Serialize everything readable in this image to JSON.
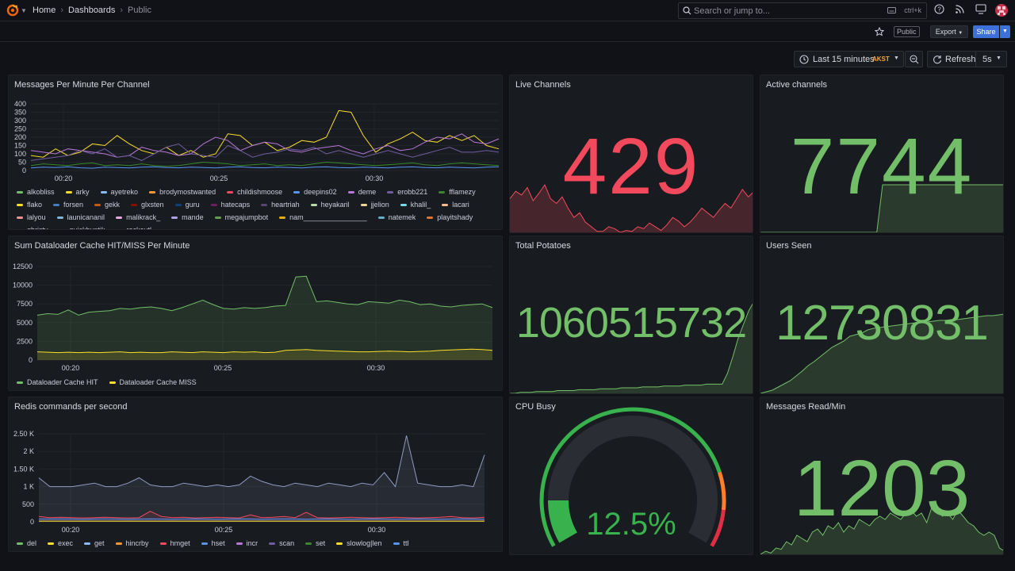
{
  "nav": {
    "breadcrumbs": [
      {
        "label": "Home"
      },
      {
        "label": "Dashboards"
      },
      {
        "label": "Public"
      }
    ],
    "search": {
      "placeholder": "Search or jump to...",
      "shortcut": "ctrl+k"
    }
  },
  "toolbar": {
    "public_badge": "Public",
    "export_label": "Export",
    "share_label": "Share",
    "time_range": "Last 15 minutes",
    "timezone": "AKST",
    "refresh_label": "Refresh",
    "refresh_interval": "5s"
  },
  "colors": {
    "bg": "#111217",
    "panel": "#181b1f",
    "green": "#73bf69",
    "red": "#f2495c",
    "yellow": "#fade2a",
    "blue": "#5794f2",
    "accent": "#3d71d9"
  },
  "panels": {
    "messages": {
      "title": "Messages Per Minute Per Channel",
      "legend": [
        {
          "name": "alkobliss",
          "color": "#73bf69"
        },
        {
          "name": "arky",
          "color": "#fade2a"
        },
        {
          "name": "ayetreko",
          "color": "#8ab8ff"
        },
        {
          "name": "brodymostwanted",
          "color": "#ff9830"
        },
        {
          "name": "childishmoose",
          "color": "#f2495c"
        },
        {
          "name": "deepins02",
          "color": "#5794f2"
        },
        {
          "name": "deme",
          "color": "#b877d9"
        },
        {
          "name": "erobb221",
          "color": "#705da0"
        },
        {
          "name": "fflamezy",
          "color": "#37872d"
        },
        {
          "name": "flako",
          "color": "#fade2a"
        },
        {
          "name": "forsen",
          "color": "#447ebc"
        },
        {
          "name": "gekk",
          "color": "#c15c17"
        },
        {
          "name": "glxsten",
          "color": "#890f02"
        },
        {
          "name": "guru",
          "color": "#0a437c"
        },
        {
          "name": "hatecaps",
          "color": "#6d1f62"
        },
        {
          "name": "heartriah",
          "color": "#584477"
        },
        {
          "name": "heyakaril",
          "color": "#b7dbab"
        },
        {
          "name": "jjelion",
          "color": "#f4d598"
        },
        {
          "name": "khalil_",
          "color": "#70dbed"
        },
        {
          "name": "lacari",
          "color": "#f9ba8f"
        },
        {
          "name": "lalyou",
          "color": "#f29191"
        },
        {
          "name": "launicananil",
          "color": "#82b5d8"
        },
        {
          "name": "malikrack_",
          "color": "#e5a8e2"
        },
        {
          "name": "mande",
          "color": "#aea2e0"
        },
        {
          "name": "megajumpbot",
          "color": "#629e51"
        },
        {
          "name": "nam________________",
          "color": "#e5ac0e"
        },
        {
          "name": "natemek",
          "color": "#64b0c8"
        },
        {
          "name": "playitshady",
          "color": "#e0752d"
        },
        {
          "name": "qhristv",
          "color": "#bf1b00"
        },
        {
          "name": "quickhuntik",
          "color": "#0a50a1"
        },
        {
          "name": "rockoutl",
          "color": "#962d82"
        }
      ]
    },
    "dataloader": {
      "title": "Sum Dataloader Cache HIT/MISS Per Minute",
      "legend": [
        {
          "name": "Dataloader Cache HIT",
          "color": "#73bf69"
        },
        {
          "name": "Dataloader Cache MISS",
          "color": "#fade2a"
        }
      ]
    },
    "redis": {
      "title": "Redis commands per second",
      "legend": [
        {
          "name": "del",
          "color": "#73bf69"
        },
        {
          "name": "exec",
          "color": "#fade2a"
        },
        {
          "name": "get",
          "color": "#8ab8ff"
        },
        {
          "name": "hincrby",
          "color": "#ff9830"
        },
        {
          "name": "hmget",
          "color": "#f2495c"
        },
        {
          "name": "hset",
          "color": "#5794f2"
        },
        {
          "name": "incr",
          "color": "#b877d9"
        },
        {
          "name": "scan",
          "color": "#705da0"
        },
        {
          "name": "set",
          "color": "#37872d"
        },
        {
          "name": "slowlog|len",
          "color": "#fade2a"
        },
        {
          "name": "ttl",
          "color": "#5794f2"
        }
      ]
    },
    "live_channels": {
      "title": "Live Channels",
      "value": "429",
      "color": "#f2495c"
    },
    "active_channels": {
      "title": "Active channels",
      "value": "7744",
      "color": "#73bf69"
    },
    "total_potatoes": {
      "title": "Total Potatoes",
      "value": "1060515732",
      "color": "#73bf69"
    },
    "users_seen": {
      "title": "Users Seen",
      "value": "12730831",
      "color": "#73bf69"
    },
    "cpu_busy": {
      "title": "CPU Busy",
      "value": "12.5%",
      "percent": 12.5,
      "color": "#37b24d"
    },
    "messages_read": {
      "title": "Messages Read/Min",
      "value": "1203",
      "color": "#73bf69"
    }
  },
  "chart_data": [
    {
      "type": "line",
      "title": "Messages Per Minute Per Channel",
      "ylim": [
        0,
        400
      ],
      "y_ticks": [
        "0",
        "50",
        "100",
        "150",
        "200",
        "250",
        "300",
        "350",
        "400"
      ],
      "x_ticks": [
        "00:20",
        "00:25",
        "00:30"
      ],
      "series": [
        {
          "name": "arky",
          "values": [
            90,
            80,
            130,
            90,
            110,
            160,
            150,
            210,
            160,
            120,
            100,
            140,
            90,
            120,
            80,
            100,
            220,
            210,
            150,
            170,
            120,
            140,
            180,
            170,
            200,
            360,
            350,
            210,
            110,
            160,
            190,
            230,
            180,
            170,
            210,
            180,
            210,
            150,
            130
          ]
        },
        {
          "name": "childishmoose",
          "values": [
            120,
            110,
            100,
            130,
            120,
            110,
            100,
            80,
            90,
            140,
            120,
            110,
            90,
            100,
            160,
            200,
            180,
            120,
            150,
            170,
            160,
            120,
            110,
            130,
            140,
            150,
            120,
            100,
            130,
            150,
            120,
            130,
            170,
            200,
            190,
            220,
            170,
            160,
            190
          ]
        },
        {
          "name": "deme",
          "values": [
            60,
            70,
            80,
            90,
            120,
            100,
            130,
            80,
            90,
            60,
            100,
            140,
            160,
            100,
            90,
            80,
            150,
            120,
            80,
            100,
            110,
            130,
            120,
            140,
            100,
            120,
            100,
            80,
            100,
            120,
            100,
            80,
            100,
            120,
            140,
            110,
            110,
            120,
            110
          ]
        },
        {
          "name": "fflamezy",
          "values": [
            30,
            40,
            35,
            30,
            40,
            45,
            30,
            35,
            30,
            40,
            30,
            25,
            30,
            40,
            50,
            45,
            40,
            30,
            35,
            40,
            30,
            35,
            30,
            40,
            50,
            45,
            40,
            35,
            30,
            35,
            40,
            45,
            35,
            30,
            40,
            45,
            40,
            35,
            30
          ]
        },
        {
          "name": "forsen",
          "values": [
            15,
            20,
            18,
            22,
            16,
            14,
            20,
            18,
            15,
            20,
            22,
            18,
            16,
            20,
            18,
            15,
            20,
            22,
            18,
            16,
            20,
            18,
            15,
            20,
            22,
            18,
            16,
            20,
            18,
            15,
            20,
            22,
            18,
            16,
            20,
            18,
            15,
            20,
            22
          ]
        }
      ]
    },
    {
      "type": "area",
      "title": "Sum Dataloader Cache HIT/MISS Per Minute",
      "ylim": [
        0,
        12500
      ],
      "y_ticks": [
        "0",
        "2500",
        "5000",
        "7500",
        "10000",
        "12500"
      ],
      "x_ticks": [
        "00:20",
        "00:25",
        "00:30"
      ],
      "series": [
        {
          "name": "Dataloader Cache HIT",
          "values": [
            6000,
            6200,
            6100,
            6700,
            6000,
            6400,
            6500,
            6600,
            6900,
            6800,
            7000,
            7100,
            6900,
            6600,
            7000,
            7500,
            8000,
            7400,
            6900,
            6800,
            7000,
            6900,
            7000,
            7200,
            7300,
            11100,
            11200,
            7800,
            7900,
            7700,
            7500,
            7400,
            7800,
            7700,
            7600,
            8000,
            7800,
            7400,
            7500,
            7200,
            7100,
            7300,
            7400,
            7500,
            7000
          ]
        },
        {
          "name": "Dataloader Cache MISS",
          "values": [
            1100,
            1050,
            1000,
            1050,
            1000,
            1050,
            1000,
            1050,
            1100,
            1000,
            1050,
            1000,
            1000,
            1100,
            1050,
            1000,
            1100,
            1050,
            1000,
            1100,
            1050,
            1100,
            1000,
            1050,
            1300,
            1350,
            1400,
            1300,
            1250,
            1200,
            1150,
            1100,
            1100,
            1150,
            1200,
            1150,
            1100,
            1150,
            1200,
            1300,
            1350,
            1400,
            1450,
            1400,
            1300
          ]
        }
      ]
    },
    {
      "type": "area",
      "title": "Redis commands per second",
      "ylim": [
        0,
        2500
      ],
      "y_ticks": [
        "0",
        "500",
        "1 K",
        "1.50 K",
        "2 K",
        "2.50 K"
      ],
      "x_ticks": [
        "00:20",
        "00:25",
        "00:30"
      ],
      "series": [
        {
          "name": "ttl",
          "values": [
            1250,
            1000,
            1000,
            1000,
            1050,
            1100,
            1000,
            1000,
            1100,
            1250,
            1050,
            1000,
            1000,
            1100,
            1050,
            1000,
            1050,
            1000,
            1050,
            1300,
            1150,
            1050,
            1000,
            1100,
            1050,
            1000,
            1100,
            1050,
            1000,
            1100,
            1050,
            1400,
            1000,
            2450,
            1100,
            1050,
            1000,
            1000,
            1050,
            1000,
            1900
          ]
        },
        {
          "name": "hmget",
          "values": [
            150,
            120,
            130,
            120,
            110,
            120,
            130,
            120,
            110,
            120,
            300,
            150,
            120,
            130,
            110,
            120,
            130,
            120,
            110,
            200,
            120,
            130,
            150,
            120,
            270,
            120,
            110,
            120,
            130,
            120,
            110,
            120,
            130,
            120,
            110,
            120,
            130,
            150,
            120,
            110,
            130
          ]
        },
        {
          "name": "hset",
          "values": [
            80,
            80,
            85,
            80,
            75,
            80,
            85,
            80,
            75,
            80,
            85,
            80,
            75,
            80,
            85,
            80,
            75,
            80,
            85,
            80,
            75,
            80,
            85,
            80,
            75,
            80,
            85,
            80,
            75,
            80,
            85,
            80,
            75,
            80,
            85,
            80,
            75,
            80,
            85,
            80,
            75
          ]
        },
        {
          "name": "exec",
          "values": [
            20,
            20,
            20,
            20,
            20,
            20,
            20,
            20,
            20,
            20,
            20,
            20,
            20,
            20,
            20,
            20,
            20,
            20,
            20,
            20,
            20,
            20,
            20,
            20,
            20,
            20,
            20,
            20,
            20,
            20,
            20,
            20,
            20,
            20,
            20,
            20,
            20,
            20,
            20,
            20,
            20
          ]
        }
      ]
    },
    {
      "type": "area",
      "title": "Live Channels sparkline",
      "values": [
        40,
        48,
        44,
        52,
        38,
        46,
        55,
        40,
        35,
        42,
        30,
        20,
        25,
        15,
        10,
        5,
        5,
        10,
        8,
        4,
        6,
        5,
        10,
        8,
        14,
        10,
        6,
        12,
        20,
        16,
        10,
        15,
        22,
        30,
        25,
        20,
        28,
        35,
        30,
        40,
        50,
        42,
        48
      ]
    },
    {
      "type": "area",
      "title": "Active channels sparkline",
      "values": [
        0,
        0,
        0,
        0,
        0,
        0,
        0,
        0,
        0,
        0,
        0,
        0,
        0,
        0,
        0,
        0,
        0,
        0,
        0,
        0,
        0,
        100,
        100,
        100,
        100,
        100,
        100,
        100,
        100,
        100,
        100,
        100,
        100,
        100,
        100,
        100,
        100,
        100,
        100,
        100,
        100,
        100,
        100
      ]
    },
    {
      "type": "area",
      "title": "Total Potatoes sparkline",
      "values": [
        0,
        0,
        1,
        1,
        1,
        2,
        2,
        2,
        2,
        3,
        3,
        3,
        3,
        4,
        4,
        4,
        4,
        5,
        5,
        5,
        5,
        6,
        6,
        6,
        6,
        7,
        7,
        7,
        7,
        8,
        8,
        8,
        8,
        9,
        9,
        9,
        9,
        10,
        10,
        10,
        10,
        22,
        40,
        60,
        75,
        90,
        100
      ]
    },
    {
      "type": "area",
      "title": "Users Seen sparkline",
      "values": [
        0,
        2,
        4,
        8,
        12,
        16,
        22,
        28,
        35,
        40,
        46,
        52,
        58,
        62,
        66,
        72,
        74,
        76,
        80,
        82,
        83,
        84,
        85,
        86,
        87,
        88,
        89,
        90,
        90,
        91,
        92,
        92,
        93,
        93,
        94,
        95,
        96,
        97,
        98,
        98,
        99,
        100
      ]
    },
    {
      "type": "area",
      "title": "Messages Read/Min sparkline",
      "values": [
        10,
        15,
        12,
        20,
        18,
        30,
        25,
        40,
        35,
        30,
        45,
        50,
        40,
        55,
        50,
        60,
        45,
        55,
        50,
        65,
        60,
        55,
        65,
        70,
        65,
        75,
        70,
        65,
        75,
        80,
        70,
        75,
        60,
        85,
        80,
        70,
        75,
        65,
        80,
        70,
        60,
        55,
        45,
        40,
        45,
        40,
        20,
        15
      ]
    }
  ]
}
